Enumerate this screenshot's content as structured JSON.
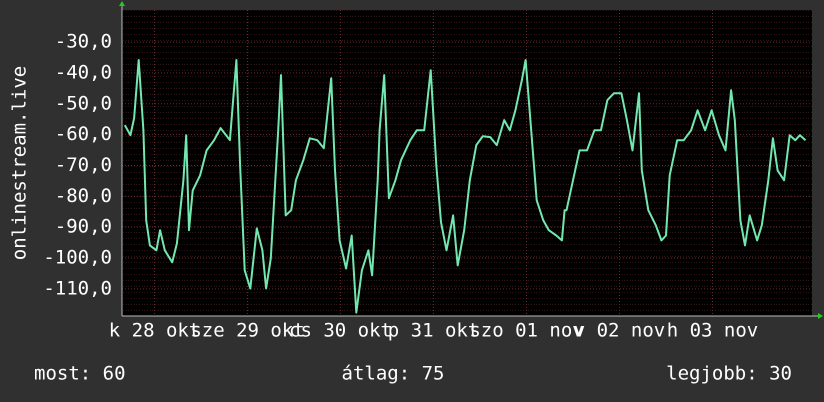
{
  "chart_data": {
    "type": "line",
    "y_label": "onlinestream.live",
    "xlim": [
      0,
      7.42
    ],
    "xticks": [
      {
        "value": 0.35,
        "label": "k 28 okt"
      },
      {
        "value": 1.35,
        "label": "sze 29 okt"
      },
      {
        "value": 2.35,
        "label": "cs 30 okt"
      },
      {
        "value": 3.35,
        "label": "p 31 okt"
      },
      {
        "value": 4.35,
        "label": "szo 01 nov"
      },
      {
        "value": 5.35,
        "label": "v 02 nov"
      },
      {
        "value": 6.35,
        "label": "h 03 nov"
      }
    ],
    "ylim": [
      -118.8,
      -19.6
    ],
    "yticks": [
      {
        "value": -30,
        "label": "-30,0"
      },
      {
        "value": -40,
        "label": "-40,0"
      },
      {
        "value": -50,
        "label": "-50,0"
      },
      {
        "value": -60,
        "label": "-60,0"
      },
      {
        "value": -70,
        "label": "-70,0"
      },
      {
        "value": -80,
        "label": "-80,0"
      },
      {
        "value": -90,
        "label": "-90,0"
      },
      {
        "value": -100,
        "label": "-100,0"
      },
      {
        "value": -110,
        "label": "-110,0"
      }
    ],
    "grid": true,
    "series": [
      {
        "color": "#72e8b0",
        "x": [
          0.03,
          0.09,
          0.13,
          0.18,
          0.23,
          0.26,
          0.3,
          0.37,
          0.41,
          0.46,
          0.54,
          0.59,
          0.66,
          0.69,
          0.72,
          0.76,
          0.84,
          0.91,
          0.99,
          1.06,
          1.16,
          1.23,
          1.27,
          1.32,
          1.38,
          1.45,
          1.51,
          1.55,
          1.6,
          1.68,
          1.71,
          1.76,
          1.82,
          1.87,
          1.95,
          2.02,
          2.1,
          2.17,
          2.25,
          2.29,
          2.34,
          2.41,
          2.47,
          2.52,
          2.58,
          2.65,
          2.69,
          2.75,
          2.77,
          2.82,
          2.87,
          2.94,
          3.0,
          3.1,
          3.17,
          3.25,
          3.32,
          3.38,
          3.43,
          3.49,
          3.56,
          3.61,
          3.68,
          3.74,
          3.81,
          3.88,
          3.96,
          4.03,
          4.11,
          4.17,
          4.23,
          4.3,
          4.34,
          4.4,
          4.46,
          4.53,
          4.59,
          4.67,
          4.73,
          4.76,
          4.78,
          4.85,
          4.92,
          5.0,
          5.08,
          5.15,
          5.22,
          5.29,
          5.37,
          5.43,
          5.49,
          5.56,
          5.59,
          5.66,
          5.74,
          5.8,
          5.85,
          5.89,
          5.97,
          6.04,
          6.12,
          6.19,
          6.27,
          6.34,
          6.42,
          6.49,
          6.55,
          6.59,
          6.65,
          6.7,
          6.75,
          6.83,
          6.88,
          6.95,
          7.0,
          7.05,
          7.12,
          7.18,
          7.24,
          7.29,
          7.35
        ],
        "values": [
          -56.9,
          -60.2,
          -54.7,
          -35.8,
          -58.6,
          -87.8,
          -95.9,
          -97.5,
          -91.0,
          -97.5,
          -101.4,
          -95.3,
          -74.8,
          -60.2,
          -91.0,
          -78.1,
          -73.2,
          -65.1,
          -61.8,
          -57.9,
          -61.8,
          -35.8,
          -69.9,
          -104.0,
          -109.9,
          -90.4,
          -97.5,
          -109.9,
          -100.1,
          -58.6,
          -40.7,
          -86.2,
          -84.5,
          -74.8,
          -68.3,
          -61.2,
          -61.8,
          -64.4,
          -41.7,
          -71.6,
          -94.3,
          -103.4,
          -92.7,
          -117.7,
          -104.0,
          -97.5,
          -105.6,
          -74.8,
          -58.6,
          -40.7,
          -80.6,
          -74.8,
          -68.3,
          -61.8,
          -58.6,
          -58.6,
          -39.1,
          -69.9,
          -88.4,
          -97.5,
          -86.2,
          -102.4,
          -91.0,
          -74.8,
          -63.4,
          -60.5,
          -60.8,
          -63.4,
          -55.3,
          -58.6,
          -52.1,
          -42.3,
          -35.8,
          -58.6,
          -81.3,
          -87.8,
          -91.0,
          -92.7,
          -94.3,
          -84.5,
          -84.5,
          -74.8,
          -65.1,
          -65.1,
          -58.6,
          -58.6,
          -48.8,
          -46.6,
          -46.6,
          -55.3,
          -65.1,
          -46.6,
          -71.6,
          -84.5,
          -89.4,
          -94.3,
          -92.7,
          -73.2,
          -61.8,
          -61.8,
          -58.6,
          -52.1,
          -58.6,
          -52.1,
          -60.2,
          -65.1,
          -45.6,
          -55.3,
          -87.8,
          -95.9,
          -86.2,
          -94.3,
          -89.4,
          -74.8,
          -61.2,
          -71.6,
          -74.8,
          -60.2,
          -61.8,
          -60.2,
          -61.8
        ]
      }
    ],
    "stats": [
      "most: 60",
      "átlag: 75",
      "legjobb: 30"
    ]
  }
}
